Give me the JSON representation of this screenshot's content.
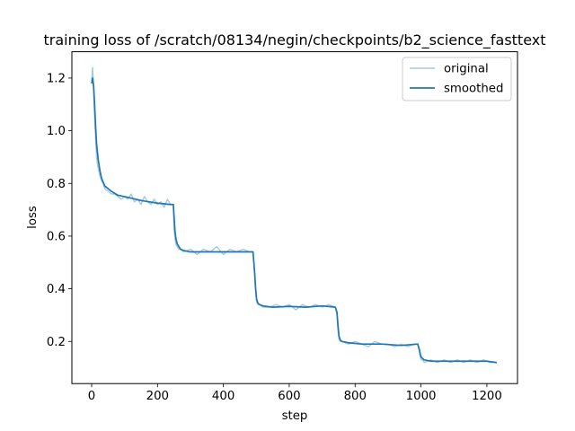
{
  "chart_data": {
    "type": "line",
    "title": "training loss of /scratch/08134/negin/checkpoints/b2_science_fasttext",
    "xlabel": "step",
    "ylabel": "loss",
    "xlim": [
      -60,
      1293
    ],
    "ylim": [
      0.04,
      1.3
    ],
    "xticks": [
      0,
      200,
      400,
      600,
      800,
      1000,
      1200
    ],
    "yticks": [
      0.2,
      0.4,
      0.6,
      0.8,
      1.0,
      1.2
    ],
    "grid": false,
    "legend_position": "upper right",
    "colors": {
      "original": "#a6c8e0",
      "smoothed": "#1f77b4"
    },
    "series": [
      {
        "name": "original",
        "x": [
          0,
          3,
          6,
          9,
          12,
          15,
          18,
          21,
          25,
          30,
          35,
          40,
          50,
          60,
          70,
          80,
          90,
          100,
          110,
          120,
          130,
          140,
          150,
          160,
          170,
          180,
          190,
          200,
          210,
          220,
          230,
          240,
          248,
          250,
          253,
          256,
          260,
          265,
          270,
          280,
          300,
          320,
          340,
          360,
          380,
          400,
          420,
          440,
          460,
          480,
          490,
          495,
          498,
          501,
          505,
          510,
          520,
          540,
          560,
          580,
          600,
          620,
          640,
          660,
          680,
          700,
          720,
          740,
          745,
          748,
          751,
          755,
          760,
          780,
          800,
          820,
          840,
          860,
          880,
          900,
          920,
          940,
          960,
          980,
          990,
          995,
          998,
          1001,
          1005,
          1010,
          1030,
          1050,
          1070,
          1090,
          1110,
          1130,
          1150,
          1170,
          1190,
          1210,
          1230
        ],
        "y": [
          1.19,
          1.24,
          1.15,
          1.05,
          0.97,
          0.9,
          0.87,
          0.85,
          0.83,
          0.81,
          0.8,
          0.78,
          0.77,
          0.76,
          0.76,
          0.75,
          0.74,
          0.75,
          0.74,
          0.76,
          0.73,
          0.74,
          0.72,
          0.75,
          0.73,
          0.72,
          0.74,
          0.72,
          0.73,
          0.71,
          0.74,
          0.72,
          0.72,
          0.63,
          0.59,
          0.57,
          0.56,
          0.55,
          0.55,
          0.54,
          0.55,
          0.53,
          0.55,
          0.54,
          0.56,
          0.53,
          0.55,
          0.54,
          0.55,
          0.54,
          0.54,
          0.45,
          0.38,
          0.35,
          0.34,
          0.34,
          0.33,
          0.33,
          0.34,
          0.33,
          0.34,
          0.32,
          0.34,
          0.33,
          0.34,
          0.33,
          0.34,
          0.33,
          0.3,
          0.24,
          0.21,
          0.2,
          0.2,
          0.19,
          0.2,
          0.19,
          0.18,
          0.2,
          0.19,
          0.19,
          0.18,
          0.19,
          0.18,
          0.19,
          0.19,
          0.16,
          0.14,
          0.13,
          0.13,
          0.12,
          0.13,
          0.12,
          0.13,
          0.12,
          0.13,
          0.12,
          0.13,
          0.12,
          0.13,
          0.12,
          0.12
        ]
      },
      {
        "name": "smoothed",
        "x": [
          0,
          3,
          6,
          9,
          12,
          15,
          20,
          25,
          30,
          40,
          50,
          60,
          80,
          100,
          150,
          200,
          240,
          248,
          250,
          253,
          256,
          260,
          265,
          270,
          280,
          300,
          350,
          400,
          450,
          490,
          495,
          498,
          501,
          505,
          510,
          520,
          550,
          600,
          650,
          700,
          740,
          745,
          748,
          751,
          755,
          760,
          780,
          820,
          880,
          940,
          990,
          995,
          998,
          1001,
          1005,
          1010,
          1030,
          1100,
          1150,
          1200,
          1230
        ],
        "y": [
          1.18,
          1.2,
          1.17,
          1.1,
          1.02,
          0.95,
          0.89,
          0.85,
          0.82,
          0.79,
          0.78,
          0.77,
          0.755,
          0.75,
          0.735,
          0.725,
          0.72,
          0.72,
          0.68,
          0.62,
          0.59,
          0.57,
          0.56,
          0.55,
          0.545,
          0.54,
          0.54,
          0.54,
          0.54,
          0.54,
          0.46,
          0.4,
          0.36,
          0.345,
          0.34,
          0.335,
          0.33,
          0.333,
          0.33,
          0.335,
          0.33,
          0.31,
          0.26,
          0.22,
          0.205,
          0.2,
          0.195,
          0.19,
          0.19,
          0.185,
          0.19,
          0.17,
          0.15,
          0.14,
          0.135,
          0.13,
          0.125,
          0.125,
          0.125,
          0.125,
          0.12
        ]
      }
    ]
  }
}
